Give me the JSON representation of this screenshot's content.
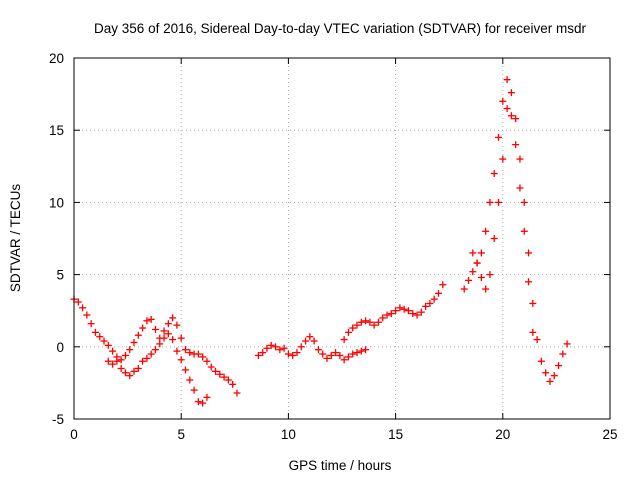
{
  "chart_data": {
    "type": "scatter",
    "title": "Day 356 of 2016, Sidereal Day-to-day VTEC variation (SDTVAR) for receiver msdr",
    "xlabel": "GPS time / hours",
    "ylabel": "SDTVAR / TECUs",
    "xlim": [
      0,
      25
    ],
    "ylim": [
      -5,
      20
    ],
    "x_ticks": [
      "0",
      "5",
      "10",
      "15",
      "20",
      "25"
    ],
    "y_ticks": [
      "-5",
      "0",
      "5",
      "10",
      "15",
      "20"
    ],
    "grid": true,
    "marker": "+",
    "color": "#ff0000",
    "series": [
      {
        "name": "SDTVAR",
        "x": [
          0.0,
          0.2,
          0.4,
          0.6,
          0.8,
          1.0,
          1.2,
          1.4,
          1.6,
          1.8,
          2.0,
          2.2,
          2.4,
          2.6,
          2.8,
          3.0,
          3.2,
          3.4,
          3.6,
          3.8,
          4.0,
          4.2,
          4.4,
          4.6,
          4.8,
          5.0,
          5.2,
          5.4,
          5.6,
          5.8,
          6.0,
          6.2,
          6.4,
          6.6,
          6.8,
          7.0,
          7.2,
          7.4,
          7.6,
          1.6,
          1.8,
          2.0,
          2.2,
          2.4,
          2.6,
          2.8,
          3.0,
          3.2,
          3.4,
          3.6,
          3.8,
          4.0,
          4.2,
          4.4,
          4.6,
          4.8,
          5.0,
          5.2,
          5.4,
          5.6,
          5.8,
          6.0,
          6.2,
          8.6,
          8.8,
          9.0,
          9.2,
          9.4,
          9.6,
          9.8,
          10.0,
          10.2,
          10.4,
          10.6,
          10.8,
          11.0,
          11.2,
          11.4,
          11.6,
          11.8,
          12.0,
          12.2,
          12.4,
          12.6,
          12.8,
          13.0,
          13.2,
          13.4,
          13.6,
          12.6,
          12.8,
          13.0,
          13.2,
          13.4,
          13.6,
          13.8,
          14.0,
          14.2,
          14.4,
          14.6,
          14.8,
          15.0,
          15.2,
          15.4,
          15.6,
          15.8,
          16.0,
          16.2,
          16.4,
          16.6,
          16.8,
          17.0,
          17.2,
          18.2,
          18.4,
          18.6,
          18.8,
          19.0,
          19.2,
          19.4,
          19.6,
          19.8,
          20.0,
          20.2,
          20.4,
          20.6,
          20.8,
          21.0,
          21.2,
          21.4,
          21.6,
          21.8,
          22.0,
          22.2,
          22.4,
          22.6,
          22.8,
          23.0,
          18.6,
          18.8,
          19.0,
          19.2,
          19.4,
          19.6,
          19.8,
          20.0,
          20.2,
          20.4,
          20.6,
          20.8,
          21.0,
          21.2,
          21.4
        ],
        "y": [
          3.3,
          3.1,
          2.7,
          2.2,
          1.6,
          1.0,
          0.7,
          0.4,
          0.1,
          -0.3,
          -0.7,
          -0.9,
          -0.6,
          -0.2,
          0.3,
          0.8,
          1.3,
          1.8,
          1.9,
          1.2,
          0.6,
          1.1,
          1.6,
          2.0,
          1.5,
          0.6,
          -0.2,
          -0.4,
          -0.5,
          -0.5,
          -0.7,
          -1.0,
          -1.4,
          -1.7,
          -1.9,
          -2.1,
          -2.3,
          -2.6,
          -3.2,
          -1.0,
          -1.2,
          -1.0,
          -1.5,
          -1.8,
          -2.0,
          -1.7,
          -1.5,
          -1.0,
          -0.8,
          -0.5,
          -0.2,
          0.2,
          0.6,
          0.9,
          0.5,
          -0.3,
          -0.9,
          -1.6,
          -2.3,
          -3.0,
          -3.8,
          -3.9,
          -3.5,
          -0.6,
          -0.4,
          -0.1,
          0.1,
          0.0,
          -0.2,
          -0.1,
          -0.5,
          -0.6,
          -0.4,
          0.0,
          0.4,
          0.7,
          0.4,
          -0.2,
          -0.5,
          -0.8,
          -0.6,
          -0.4,
          -0.6,
          -0.9,
          -0.7,
          -0.5,
          -0.4,
          -0.3,
          -0.2,
          0.5,
          1.0,
          1.3,
          1.5,
          1.7,
          1.8,
          1.7,
          1.5,
          1.7,
          2.0,
          2.2,
          2.3,
          2.5,
          2.7,
          2.6,
          2.5,
          2.3,
          2.2,
          2.4,
          2.8,
          3.0,
          3.3,
          3.7,
          4.3,
          4.0,
          4.6,
          5.2,
          5.8,
          6.5,
          8.0,
          10.0,
          12.0,
          14.5,
          17.0,
          18.5,
          17.6,
          15.8,
          13.0,
          10.0,
          6.5,
          3.0,
          0.5,
          -1.0,
          -1.8,
          -2.4,
          -2.0,
          -1.3,
          -0.5,
          0.2,
          6.5,
          5.8,
          4.8,
          4.0,
          5.0,
          7.5,
          10.0,
          13.0,
          16.5,
          16.0,
          14.0,
          11.0,
          8.0,
          4.5,
          1.0
        ]
      }
    ]
  }
}
